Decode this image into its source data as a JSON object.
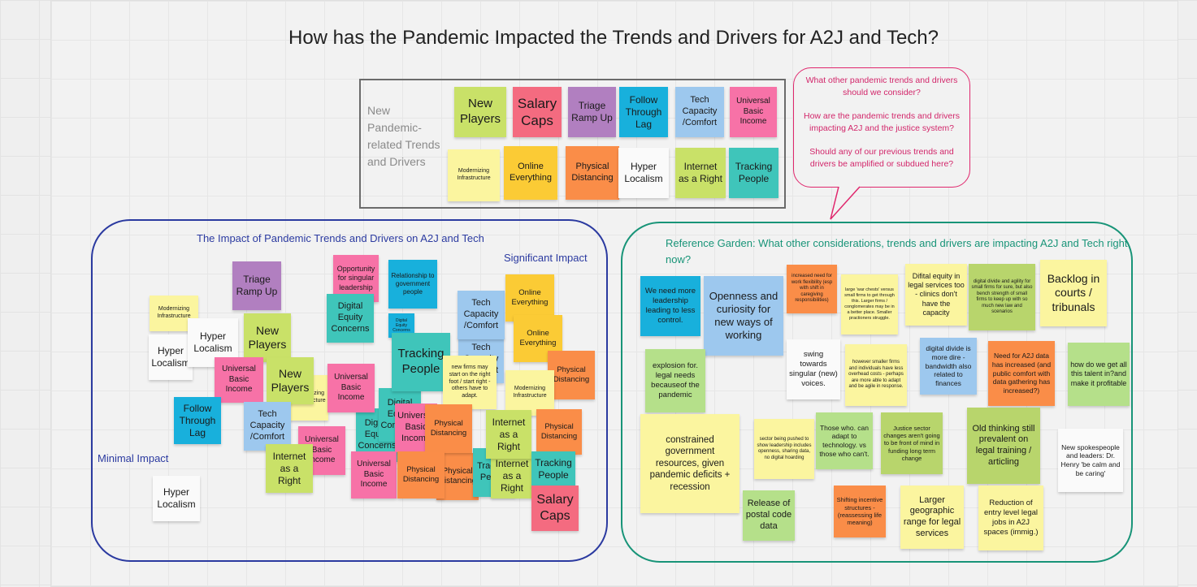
{
  "board": {
    "title": "How has the Pandemic Impacted the Trends and Drivers for A2J and Tech?",
    "new_trends_box": {
      "label": "New Pandemic-related Trends and Drivers"
    },
    "speech_bubble": {
      "q1": "What other pandemic trends and drivers should we consider?",
      "q2": "How are the pandemic trends and drivers impacting A2J and the justice system?",
      "q3": "Should any of our previous trends and drivers be amplified or subdued here?"
    },
    "impact_area": {
      "title": "The Impact of Pandemic Trends and Drivers on A2J and Tech",
      "significant": "Significant Impact",
      "minimal": "Minimal Impact"
    },
    "garden_area": {
      "title": "Reference Garden: What other considerations, trends and drivers are impacting A2J and Tech right now?"
    }
  },
  "colors": {
    "lime": "#c9e168",
    "pink": "#f46b80",
    "purple": "#b17fc0",
    "cyan": "#18b0dc",
    "light_blue": "#9dc8ee",
    "magenta_pink": "#f772a7",
    "light_yellow": "#fbf59f",
    "yellow": "#fbcb35",
    "orange": "#fa8d48",
    "white": "#fafafa",
    "green": "#b5e08a",
    "teal": "#3fc5ba",
    "blue_frame": "#2b3aa0",
    "green_frame": "#189478",
    "bubble": "#e0276d"
  },
  "notes": {
    "new_players": "New Players",
    "salary_caps": "Salary Caps",
    "triage": "Triage Ramp Up",
    "follow_through": "Follow Through Lag",
    "tech_capacity": "Tech Capacity /Comfort",
    "ubi": "Universal Basic Income",
    "modernizing": "Modernizing Infrastructure",
    "online": "Online Everything",
    "physical": "Physical Distancing",
    "hyper": "Hyper Localism",
    "internet": "Internet as a Right",
    "tracking": "Tracking People",
    "opportunity": "Opportunity for singular leadership",
    "relationship": "Relationship to government people",
    "digital_equity": "Digital Equity Concerns",
    "new_firms": "new firms may start on the right foot / start right - others have to adapt."
  },
  "garden": {
    "g1": "We need more leadership leading to less control.",
    "g2": "Openness and curiosity for new ways of working",
    "g3": "increased need for work flexibility (esp with shift in caregiving responsibilities)",
    "g4": "large 'war chests' versus small firms to get through this. Larger firms / conglomerates may be in a better place. Smaller practioners struggle.",
    "g5": "Difital equity in legal services too - clinics don't have the capacity",
    "g6": "digital divide and agility for small firms for sure, but also bench strength of small firms to keep up with so much new law and scenarios",
    "g7": "Backlog in courts / tribunals",
    "g8": "explosion for. legal needs becauseof the pandemic",
    "g9": "swing towards singular (new) voices.",
    "g10": "however smaller firms and individuals have less overhead costs - perhaps are more able to adapt and be agile in response.",
    "g11": "digital divide is more dire - bandwidth also related to finances",
    "g12": "Need for A2J data has increased (and public comfort with data gathering has increased?)",
    "g13": "how do we get all this talent in?and make it profitable",
    "g14": "constrained government resources, given pandemic deficits + recession",
    "g15": "sector being pushed to show leadership includes openness, sharing data, no digital hoarding",
    "g16": "Those who. can adapt to technology. vs those who can't.",
    "g17": "Justice sector changes aren't going to be front of mind in funding long term change",
    "g18": "Old thinking still prevalent on legal training / articling",
    "g19": "New spokespeople and leaders: Dr. Henry 'be calm and be caring'",
    "g20": "Release of postal code data",
    "g21": "Shifting incentive structures - (reassessing life meaning)",
    "g22": "Larger geographic range for legal services",
    "g23": "Reduction of entry level legal jobs in A2J spaces (immig.)"
  }
}
